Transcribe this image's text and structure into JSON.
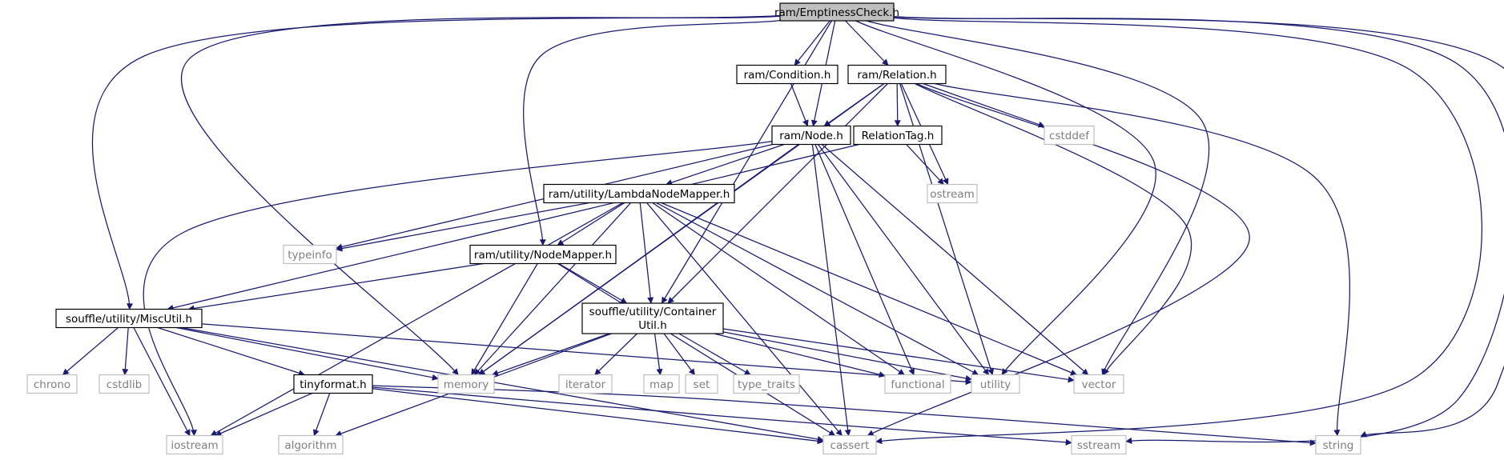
{
  "colors": {
    "edge": "#191970",
    "header_fill": "#bfbfbf",
    "header_stroke": "#000000",
    "internal_stroke": "#000000",
    "external_stroke": "#bfbfbf",
    "external_text": "#7f7f7f",
    "text": "#000000"
  },
  "nodes": [
    {
      "id": "emptiness",
      "label": "ram/EmptinessCheck.h",
      "kind": "header"
    },
    {
      "id": "condition",
      "label": "ram/Condition.h",
      "kind": "internal"
    },
    {
      "id": "relation",
      "label": "ram/Relation.h",
      "kind": "internal"
    },
    {
      "id": "node",
      "label": "ram/Node.h",
      "kind": "internal"
    },
    {
      "id": "relationtag",
      "label": "RelationTag.h",
      "kind": "internal"
    },
    {
      "id": "cstddef",
      "label": "cstddef",
      "kind": "external"
    },
    {
      "id": "ostream",
      "label": "ostream",
      "kind": "external"
    },
    {
      "id": "lambda",
      "label": "ram/utility/LambdaNodeMapper.h",
      "kind": "internal"
    },
    {
      "id": "typeinfo",
      "label": "typeinfo",
      "kind": "external"
    },
    {
      "id": "nodemapper",
      "label": "ram/utility/NodeMapper.h",
      "kind": "internal"
    },
    {
      "id": "miscutil",
      "label": "souffle/utility/MiscUtil.h",
      "kind": "internal"
    },
    {
      "id": "container",
      "label": "souffle/utility/Container",
      "label2": "Util.h",
      "kind": "internal"
    },
    {
      "id": "chrono",
      "label": "chrono",
      "kind": "external"
    },
    {
      "id": "cstdlib",
      "label": "cstdlib",
      "kind": "external"
    },
    {
      "id": "tinyformat",
      "label": "tinyformat.h",
      "kind": "internal"
    },
    {
      "id": "memory",
      "label": "memory",
      "kind": "external"
    },
    {
      "id": "iterator",
      "label": "iterator",
      "kind": "external"
    },
    {
      "id": "map",
      "label": "map",
      "kind": "external"
    },
    {
      "id": "set",
      "label": "set",
      "kind": "external"
    },
    {
      "id": "type_traits",
      "label": "type_traits",
      "kind": "external"
    },
    {
      "id": "functional",
      "label": "functional",
      "kind": "external"
    },
    {
      "id": "utility",
      "label": "utility",
      "kind": "external"
    },
    {
      "id": "vector",
      "label": "vector",
      "kind": "external"
    },
    {
      "id": "iostream",
      "label": "iostream",
      "kind": "external"
    },
    {
      "id": "algorithm",
      "label": "algorithm",
      "kind": "external"
    },
    {
      "id": "cassert",
      "label": "cassert",
      "kind": "external"
    },
    {
      "id": "sstream",
      "label": "sstream",
      "kind": "external"
    },
    {
      "id": "string",
      "label": "string",
      "kind": "external"
    }
  ],
  "edges": [
    [
      "emptiness",
      "condition"
    ],
    [
      "emptiness",
      "relation"
    ],
    [
      "emptiness",
      "node"
    ],
    [
      "emptiness",
      "nodemapper"
    ],
    [
      "emptiness",
      "miscutil"
    ],
    [
      "emptiness",
      "container"
    ],
    [
      "emptiness",
      "memory"
    ],
    [
      "emptiness",
      "utility"
    ],
    [
      "emptiness",
      "vector"
    ],
    [
      "emptiness",
      "cassert"
    ],
    [
      "emptiness",
      "sstream"
    ],
    [
      "emptiness",
      "string"
    ],
    [
      "condition",
      "node"
    ],
    [
      "relation",
      "node"
    ],
    [
      "relation",
      "relationtag"
    ],
    [
      "relation",
      "cstddef"
    ],
    [
      "relation",
      "ostream"
    ],
    [
      "relation",
      "container"
    ],
    [
      "relation",
      "memory"
    ],
    [
      "relation",
      "utility"
    ],
    [
      "relation",
      "vector"
    ],
    [
      "relation",
      "cassert"
    ],
    [
      "relation",
      "string"
    ],
    [
      "node",
      "lambda"
    ],
    [
      "node",
      "typeinfo"
    ],
    [
      "node",
      "memory"
    ],
    [
      "node",
      "functional"
    ],
    [
      "node",
      "utility"
    ],
    [
      "node",
      "vector"
    ],
    [
      "node",
      "cassert"
    ],
    [
      "node",
      "iostream"
    ],
    [
      "relationtag",
      "ostream"
    ],
    [
      "relationtag",
      "miscutil"
    ],
    [
      "lambda",
      "typeinfo"
    ],
    [
      "lambda",
      "nodemapper"
    ],
    [
      "lambda",
      "container"
    ],
    [
      "lambda",
      "memory"
    ],
    [
      "lambda",
      "functional"
    ],
    [
      "lambda",
      "utility"
    ],
    [
      "lambda",
      "vector"
    ],
    [
      "lambda",
      "cassert"
    ],
    [
      "lambda",
      "iostream"
    ],
    [
      "nodemapper",
      "miscutil"
    ],
    [
      "nodemapper",
      "container"
    ],
    [
      "nodemapper",
      "memory"
    ],
    [
      "nodemapper",
      "cassert"
    ],
    [
      "miscutil",
      "chrono"
    ],
    [
      "miscutil",
      "cstdlib"
    ],
    [
      "miscutil",
      "tinyformat"
    ],
    [
      "miscutil",
      "memory"
    ],
    [
      "miscutil",
      "iostream"
    ],
    [
      "miscutil",
      "utility"
    ],
    [
      "miscutil",
      "cassert"
    ],
    [
      "container",
      "memory"
    ],
    [
      "container",
      "iterator"
    ],
    [
      "container",
      "map"
    ],
    [
      "container",
      "set"
    ],
    [
      "container",
      "type_traits"
    ],
    [
      "container",
      "functional"
    ],
    [
      "container",
      "utility"
    ],
    [
      "container",
      "vector"
    ],
    [
      "container",
      "algorithm"
    ],
    [
      "tinyformat",
      "iostream"
    ],
    [
      "tinyformat",
      "algorithm"
    ],
    [
      "tinyformat",
      "cassert"
    ],
    [
      "tinyformat",
      "sstream"
    ],
    [
      "tinyformat",
      "string"
    ]
  ]
}
